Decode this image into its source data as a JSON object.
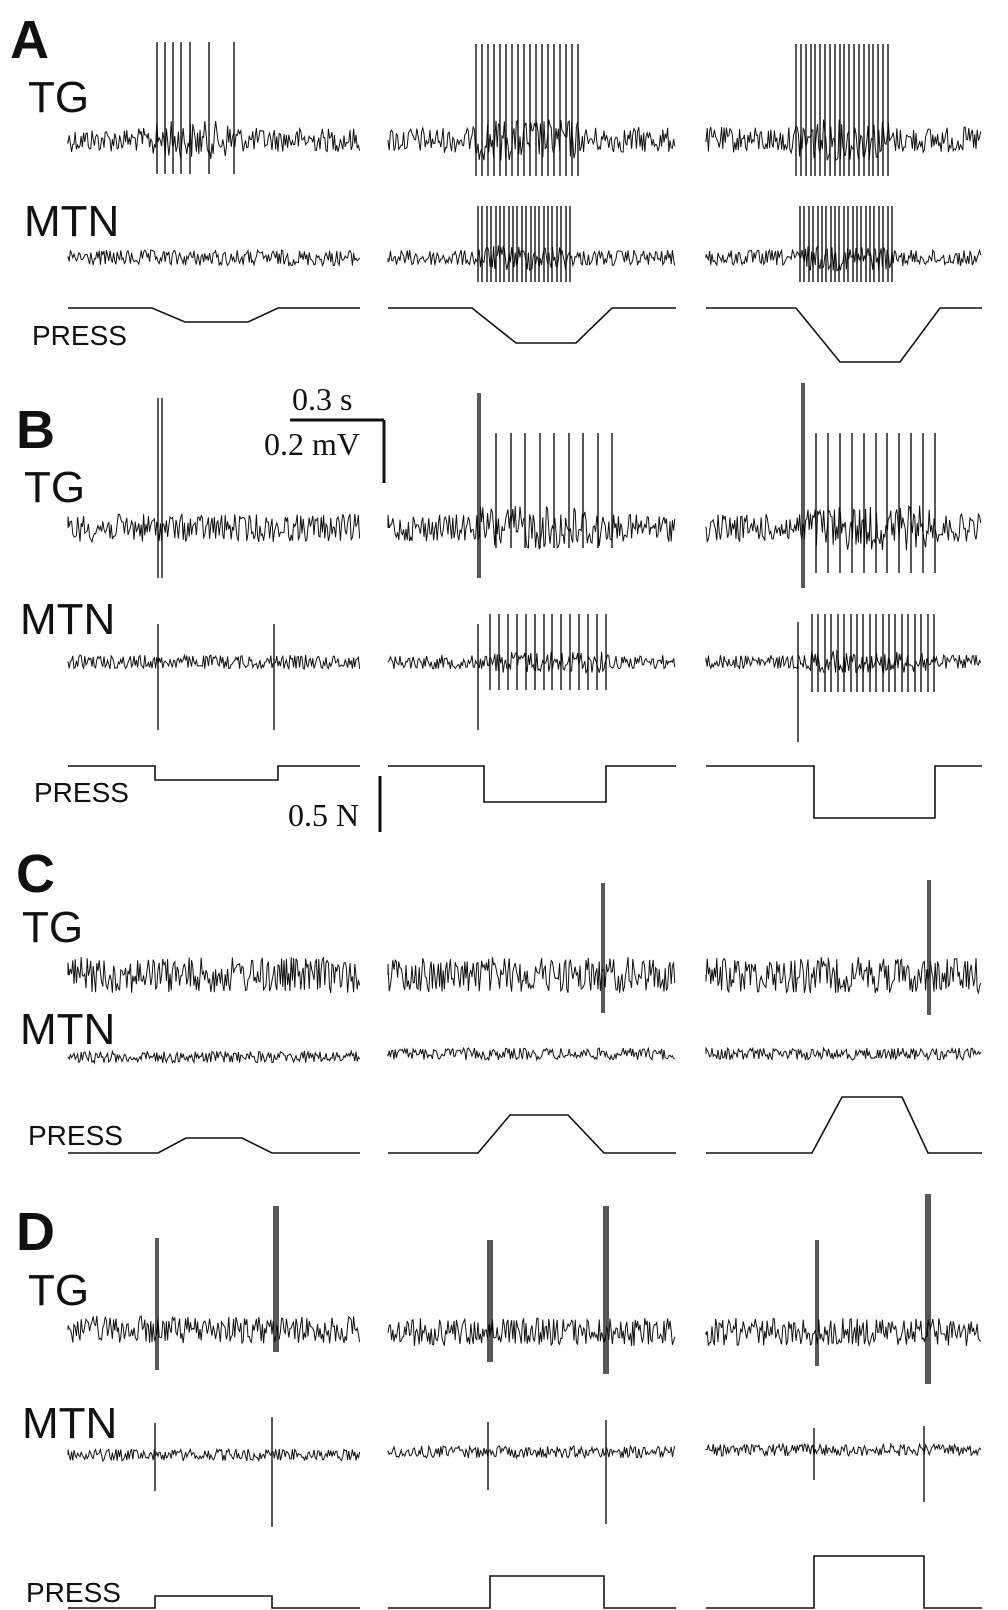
{
  "figure": {
    "panels": [
      {
        "id": "A",
        "rows": [
          {
            "name": "TG",
            "label": "TG"
          },
          {
            "name": "MTN",
            "label": "MTN"
          },
          {
            "name": "PRESS",
            "label": "PRESS"
          }
        ]
      },
      {
        "id": "B",
        "rows": [
          {
            "name": "TG",
            "label": "TG"
          },
          {
            "name": "MTN",
            "label": "MTN"
          },
          {
            "name": "PRESS",
            "label": "PRESS"
          }
        ]
      },
      {
        "id": "C",
        "rows": [
          {
            "name": "TG",
            "label": "TG"
          },
          {
            "name": "MTN",
            "label": "MTN"
          },
          {
            "name": "PRESS",
            "label": "PRESS"
          }
        ]
      },
      {
        "id": "D",
        "rows": [
          {
            "name": "TG",
            "label": "TG"
          },
          {
            "name": "MTN",
            "label": "MTN"
          },
          {
            "name": "PRESS",
            "label": "PRESS"
          }
        ]
      }
    ],
    "scale_bars": {
      "time": "0.3 s",
      "voltage": "0.2 mV",
      "force": "0.5 N"
    }
  }
}
